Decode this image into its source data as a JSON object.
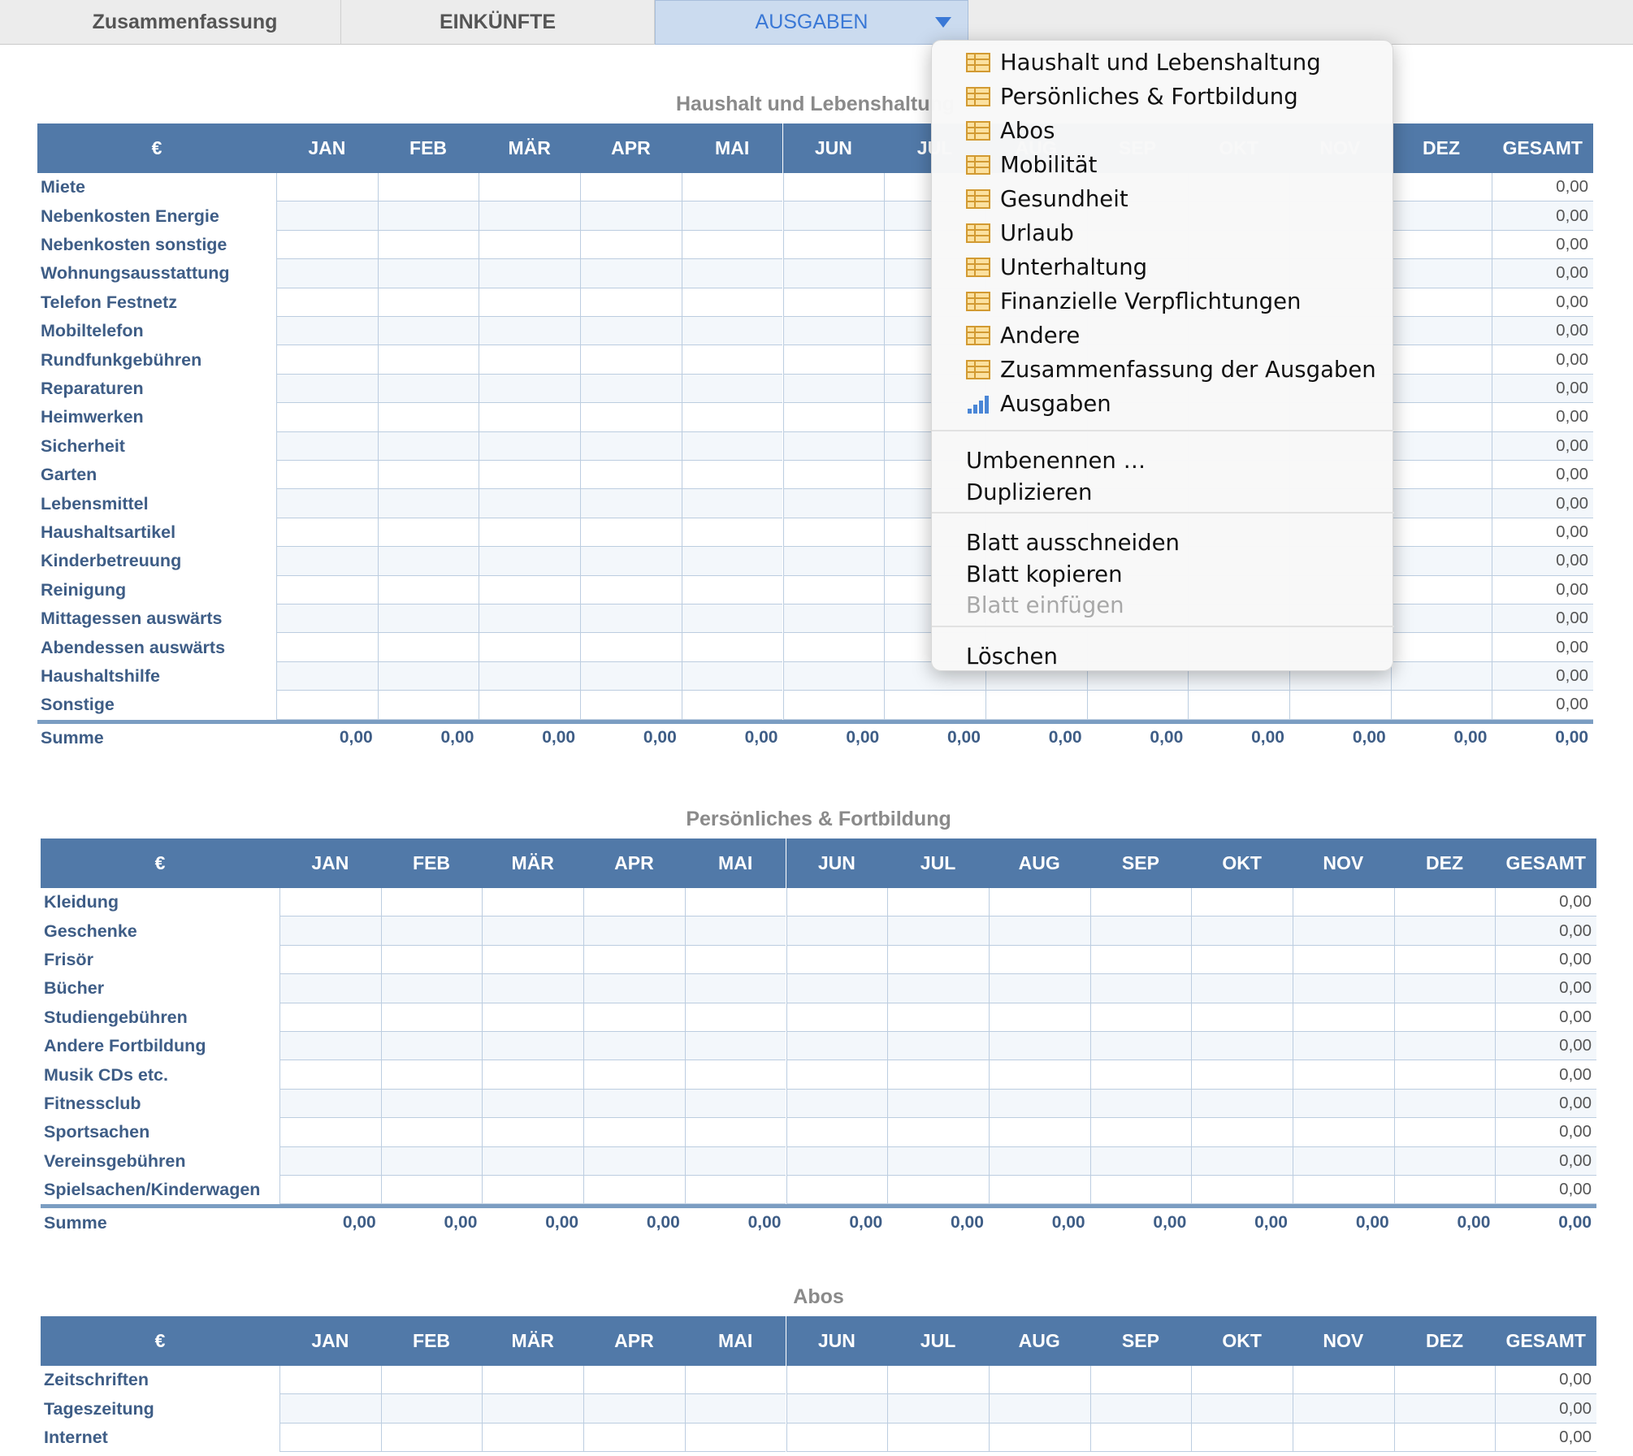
{
  "tabs": [
    "Zusammenfassung",
    "EINKÜNFTE",
    "AUSGABEN"
  ],
  "active_tab": 2,
  "tables": [
    {
      "title": "Haushalt und Lebenshaltung",
      "columns": [
        "€",
        "JAN",
        "FEB",
        "MÄR",
        "APR",
        "MAI",
        "JUN",
        "JUL",
        "AUG",
        "SEP",
        "OKT",
        "NOV",
        "DEZ",
        "GESAMT"
      ],
      "rows": [
        {
          "label": "Miete",
          "total": "0,00"
        },
        {
          "label": "Nebenkosten Energie",
          "total": "0,00"
        },
        {
          "label": "Nebenkosten sonstige",
          "total": "0,00"
        },
        {
          "label": "Wohnungsausstattung",
          "total": "0,00"
        },
        {
          "label": "Telefon Festnetz",
          "total": "0,00"
        },
        {
          "label": "Mobiltelefon",
          "total": "0,00"
        },
        {
          "label": "Rundfunkgebühren",
          "total": "0,00"
        },
        {
          "label": "Reparaturen",
          "total": "0,00"
        },
        {
          "label": "Heimwerken",
          "total": "0,00"
        },
        {
          "label": "Sicherheit",
          "total": "0,00"
        },
        {
          "label": "Garten",
          "total": "0,00"
        },
        {
          "label": "Lebensmittel",
          "total": "0,00"
        },
        {
          "label": "Haushaltsartikel",
          "total": "0,00"
        },
        {
          "label": "Kinderbetreuung",
          "total": "0,00"
        },
        {
          "label": "Reinigung",
          "total": "0,00"
        },
        {
          "label": "Mittagessen auswärts",
          "total": "0,00"
        },
        {
          "label": "Abendessen auswärts",
          "total": "0,00"
        },
        {
          "label": "Haushaltshilfe",
          "total": "0,00"
        },
        {
          "label": "Sonstige",
          "total": "0,00"
        }
      ],
      "sum": {
        "label": "Summe",
        "values": [
          "0,00",
          "0,00",
          "0,00",
          "0,00",
          "0,00",
          "0,00",
          "0,00",
          "0,00",
          "0,00",
          "0,00",
          "0,00",
          "0,00",
          "0,00"
        ]
      }
    },
    {
      "title": "Persönliches & Fortbildung",
      "columns": [
        "€",
        "JAN",
        "FEB",
        "MÄR",
        "APR",
        "MAI",
        "JUN",
        "JUL",
        "AUG",
        "SEP",
        "OKT",
        "NOV",
        "DEZ",
        "GESAMT"
      ],
      "rows": [
        {
          "label": "Kleidung",
          "total": "0,00"
        },
        {
          "label": "Geschenke",
          "total": "0,00"
        },
        {
          "label": "Frisör",
          "total": "0,00"
        },
        {
          "label": "Bücher",
          "total": "0,00"
        },
        {
          "label": "Studiengebühren",
          "total": "0,00"
        },
        {
          "label": "Andere Fortbildung",
          "total": "0,00"
        },
        {
          "label": "Musik CDs etc.",
          "total": "0,00"
        },
        {
          "label": "Fitnessclub",
          "total": "0,00"
        },
        {
          "label": "Sportsachen",
          "total": "0,00"
        },
        {
          "label": "Vereinsgebühren",
          "total": "0,00"
        },
        {
          "label": "Spielsachen/Kinderwagen",
          "total": "0,00"
        }
      ],
      "sum": {
        "label": "Summe",
        "values": [
          "0,00",
          "0,00",
          "0,00",
          "0,00",
          "0,00",
          "0,00",
          "0,00",
          "0,00",
          "0,00",
          "0,00",
          "0,00",
          "0,00",
          "0,00"
        ]
      }
    },
    {
      "title": "Abos",
      "columns": [
        "€",
        "JAN",
        "FEB",
        "MÄR",
        "APR",
        "MAI",
        "JUN",
        "JUL",
        "AUG",
        "SEP",
        "OKT",
        "NOV",
        "DEZ",
        "GESAMT"
      ],
      "rows": [
        {
          "label": "Zeitschriften",
          "total": "0,00"
        },
        {
          "label": "Tageszeitung",
          "total": "0,00"
        },
        {
          "label": "Internet",
          "total": "0,00"
        }
      ]
    }
  ],
  "menu": {
    "sheets": [
      {
        "label": "Haushalt und Lebenshaltung",
        "icon": "table"
      },
      {
        "label": "Persönliches & Fortbildung",
        "icon": "table"
      },
      {
        "label": "Abos",
        "icon": "table"
      },
      {
        "label": "Mobilität",
        "icon": "table"
      },
      {
        "label": "Gesundheit",
        "icon": "table"
      },
      {
        "label": "Urlaub",
        "icon": "table"
      },
      {
        "label": "Unterhaltung",
        "icon": "table"
      },
      {
        "label": "Finanzielle Verpflichtungen",
        "icon": "table"
      },
      {
        "label": "Andere",
        "icon": "table"
      },
      {
        "label": "Zusammenfassung der Ausgaben",
        "icon": "table"
      },
      {
        "label": "Ausgaben",
        "icon": "chart"
      }
    ],
    "groups": [
      [
        {
          "label": "Umbenennen …",
          "enabled": true
        },
        {
          "label": "Duplizieren",
          "enabled": true
        }
      ],
      [
        {
          "label": "Blatt ausschneiden",
          "enabled": true
        },
        {
          "label": "Blatt kopieren",
          "enabled": true
        },
        {
          "label": "Blatt einfügen",
          "enabled": false
        }
      ],
      [
        {
          "label": "Löschen",
          "enabled": true
        }
      ]
    ]
  }
}
